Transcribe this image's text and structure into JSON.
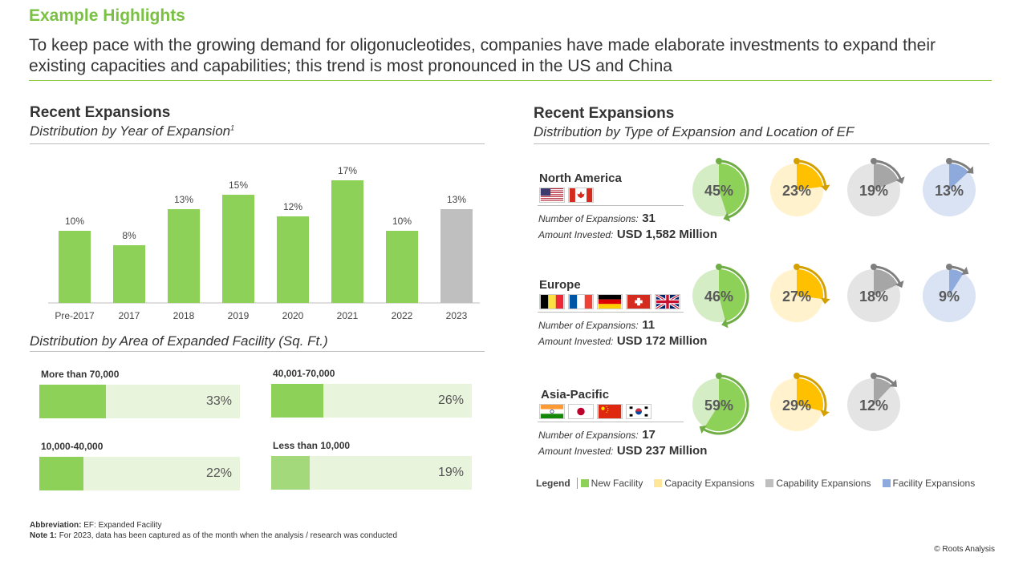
{
  "header": {
    "title": "Example Highlights",
    "subtitle": "To keep pace with the growing demand for oligonucleotides, companies have made elaborate investments to expand their existing capacities and capabilities; this trend is most pronounced in the US and China"
  },
  "left": {
    "section_title": "Recent Expansions",
    "year_subtitle": "Distribution by Year of Expansion",
    "year_footnote_marker": "1",
    "area_subtitle": "Distribution by Area of Expanded Facility (Sq. Ft.)"
  },
  "right": {
    "section_title": "Recent Expansions",
    "subtitle": "Distribution by Type of Expansion and Location of EF"
  },
  "chart_data": [
    {
      "type": "bar",
      "categories": [
        "Pre-2017",
        "2017",
        "2018",
        "2019",
        "2020",
        "2021",
        "2022",
        "2023"
      ],
      "values": [
        10,
        8,
        13,
        15,
        12,
        17,
        10,
        13
      ],
      "value_labels": [
        "10%",
        "8%",
        "13%",
        "15%",
        "12%",
        "17%",
        "10%",
        "13%"
      ],
      "bar_colors": [
        "#8ED159",
        "#8ED159",
        "#8ED159",
        "#8ED159",
        "#8ED159",
        "#8ED159",
        "#8ED159",
        "#BFBFBF"
      ],
      "ylim": [
        0,
        20
      ]
    },
    {
      "type": "bar",
      "categories": [
        "More than 70,000",
        "40,001-70,000",
        "10,000-40,000",
        "Less than 10,000"
      ],
      "values": [
        33,
        26,
        22,
        19
      ],
      "value_labels": [
        "33%",
        "26%",
        "22%",
        "19%"
      ]
    },
    {
      "type": "pie",
      "regions": [
        {
          "name": "North America",
          "flags": [
            "US",
            "CA"
          ],
          "expansions_label": "Number of Expansions:",
          "expansions": "31",
          "invested_label": "Amount Invested:",
          "invested": "USD 1,582 Million",
          "values": [
            45,
            23,
            19,
            13
          ],
          "labels": [
            "45%",
            "23%",
            "19%",
            "13%"
          ]
        },
        {
          "name": "Europe",
          "flags": [
            "BE",
            "FR",
            "DE",
            "CH",
            "UK"
          ],
          "expansions_label": "Number of Expansions:",
          "expansions": "11",
          "invested_label": "Amount Invested:",
          "invested": "USD 172 Million",
          "values": [
            46,
            27,
            18,
            9
          ],
          "labels": [
            "46%",
            "27%",
            "18%",
            "9%"
          ]
        },
        {
          "name": "Asia-Pacific",
          "flags": [
            "IN",
            "JP",
            "CN",
            "KR"
          ],
          "expansions_label": "Number of Expansions:",
          "expansions": "17",
          "invested_label": "Amount Invested:",
          "invested": "USD 237 Million",
          "values": [
            59,
            29,
            12
          ],
          "labels": [
            "59%",
            "29%",
            "12%"
          ]
        }
      ],
      "legend": [
        {
          "name": "New Facility",
          "color": "#8ED159"
        },
        {
          "name": "Capacity Expansions",
          "color": "#FFE699"
        },
        {
          "name": "Capability Expansions",
          "color": "#BFBFBF"
        },
        {
          "name": "Facility Expansions",
          "color": "#8EA9DB"
        }
      ]
    }
  ],
  "palette": {
    "light": [
      "#D5EDC4",
      "#FFF2CC",
      "#E4E4E4",
      "#DAE3F3"
    ],
    "dark": [
      "#8ED159",
      "#FFC000",
      "#A6A6A6",
      "#8EA9DB"
    ],
    "arrow": [
      "#70AD47",
      "#D4A000",
      "#7F7F7F",
      "#7F7F7F"
    ]
  },
  "legend_title": "Legend",
  "notes": {
    "abbr_label": "Abbreviation:",
    "abbr_text": "EF: Expanded Facility",
    "note_label": "Note 1:",
    "note_text": "For 2023, data has been captured as of the month when the analysis / research was conducted"
  },
  "copyright": "© Roots Analysis"
}
